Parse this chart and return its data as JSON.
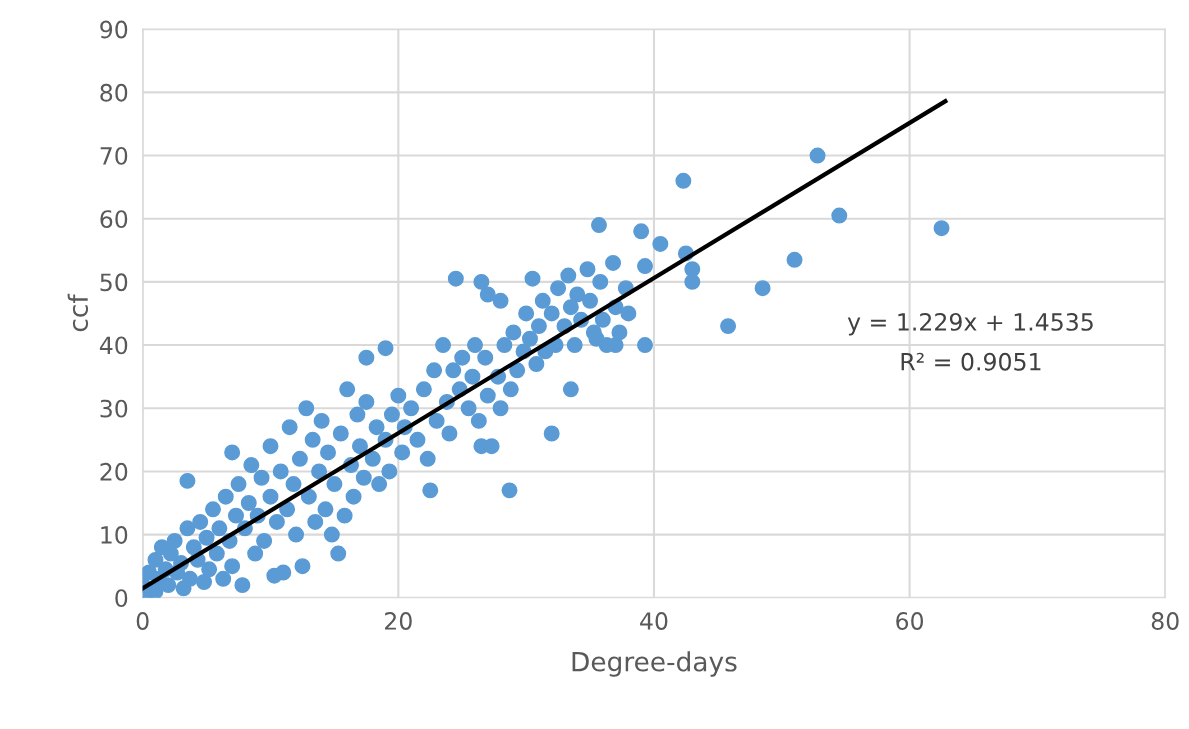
{
  "chart_data": {
    "type": "scatter",
    "xlabel": "Degree-days",
    "ylabel": "ccf",
    "xlim": [
      0,
      80
    ],
    "xticks": [
      0,
      20,
      40,
      60,
      80
    ],
    "ylim": [
      0,
      90
    ],
    "yticks": [
      0,
      10,
      20,
      30,
      40,
      50,
      60,
      70,
      80,
      90
    ],
    "grid": true,
    "legend": false,
    "marker": "circle",
    "annotations": [
      "y = 1.229x + 1.4535",
      "R² = 0.9051"
    ],
    "series": [
      {
        "color": "#5b9bd5",
        "x": [
          0,
          0,
          0.3,
          0.5,
          1,
          1,
          1.3,
          1.5,
          1.8,
          2,
          2.2,
          2.5,
          2.7,
          3,
          3.2,
          3.5,
          3.7,
          4,
          4.3,
          4.5,
          4.8,
          5,
          5.2,
          5.5,
          5.8,
          6,
          6.3,
          6.5,
          6.8,
          7,
          7,
          7.3,
          7.5,
          7.8,
          8,
          8.3,
          8.5,
          8.8,
          9,
          9.3,
          9.5,
          10,
          10,
          10.3,
          10.5,
          10.8,
          11,
          11.3,
          11.5,
          11.8,
          12,
          12.3,
          12.5,
          12.8,
          13,
          13.3,
          13.5,
          13.8,
          14,
          14.3,
          14.5,
          14.8,
          15,
          15.3,
          15.5,
          15.8,
          16,
          16.3,
          16.5,
          16.8,
          17,
          17.3,
          17.5,
          18,
          18.3,
          18.5,
          19,
          19.3,
          19.5,
          20,
          20.3,
          20.5,
          21,
          21.5,
          22,
          22.3,
          22.8,
          23,
          23.5,
          23.8,
          24,
          24.3,
          24.8,
          25,
          25.5,
          25.8,
          26,
          26.3,
          26.5,
          26.8,
          27,
          27.3,
          27.8,
          28,
          28.3,
          28.8,
          29,
          29.3,
          29.8,
          30,
          30.3,
          30.8,
          31,
          31.3,
          31.5,
          32,
          32.3,
          32.5,
          33,
          33.3,
          33.5,
          33.8,
          34,
          34.3,
          34.8,
          35,
          35.3,
          35.8,
          36,
          36.3,
          36.8,
          37,
          37.3,
          37.8,
          38,
          35.5,
          37,
          42.3,
          52.8,
          54.5,
          62.5,
          51,
          48.5,
          45.8,
          43,
          43,
          42.5,
          40.5,
          39,
          35.7,
          39.3,
          39.3,
          33.5,
          32,
          28.7,
          22.5,
          3.5,
          17.5,
          19,
          24.5,
          26.5,
          30.5,
          28,
          27
        ],
        "values": [
          2,
          3.5,
          1,
          4,
          6,
          1,
          3,
          8,
          4.5,
          2,
          7,
          9,
          4,
          5.5,
          1.5,
          11,
          3,
          8,
          6,
          12,
          2.5,
          9.5,
          4.5,
          14,
          7,
          11,
          3,
          16,
          9,
          23,
          5,
          13,
          18,
          2,
          11,
          15,
          21,
          7,
          13,
          19,
          9,
          16,
          24,
          3.5,
          12,
          20,
          4,
          14,
          27,
          18,
          10,
          22,
          5,
          30,
          16,
          25,
          12,
          20,
          28,
          14,
          23,
          10,
          18,
          7,
          26,
          13,
          33,
          21,
          16,
          29,
          24,
          19,
          31,
          22,
          27,
          18,
          25,
          20,
          29,
          32,
          23,
          27,
          30,
          25,
          33,
          22,
          36,
          28,
          40,
          31,
          26,
          36,
          33,
          38,
          30,
          35,
          40,
          28,
          24,
          38,
          32,
          24,
          35,
          30,
          40,
          33,
          42,
          36,
          39,
          45,
          41,
          37,
          43,
          47,
          39,
          45,
          40,
          49,
          43,
          51,
          46,
          40,
          48,
          44,
          52,
          47,
          42,
          50,
          44,
          40,
          53,
          46,
          42,
          49,
          45,
          41,
          40,
          66,
          70,
          60.5,
          58.5,
          53.5,
          49,
          43,
          50,
          52,
          54.5,
          56,
          58,
          59,
          52.5,
          40,
          33,
          26,
          17,
          17,
          18.5,
          38,
          39.5,
          50.5,
          50,
          50.5,
          47,
          48
        ]
      },
      {
        "type": "line",
        "color": "#000000",
        "x": [
          0,
          62.8
        ],
        "values": [
          1.5,
          78.6
        ],
        "marker": "none",
        "line_style": "solid"
      }
    ]
  }
}
